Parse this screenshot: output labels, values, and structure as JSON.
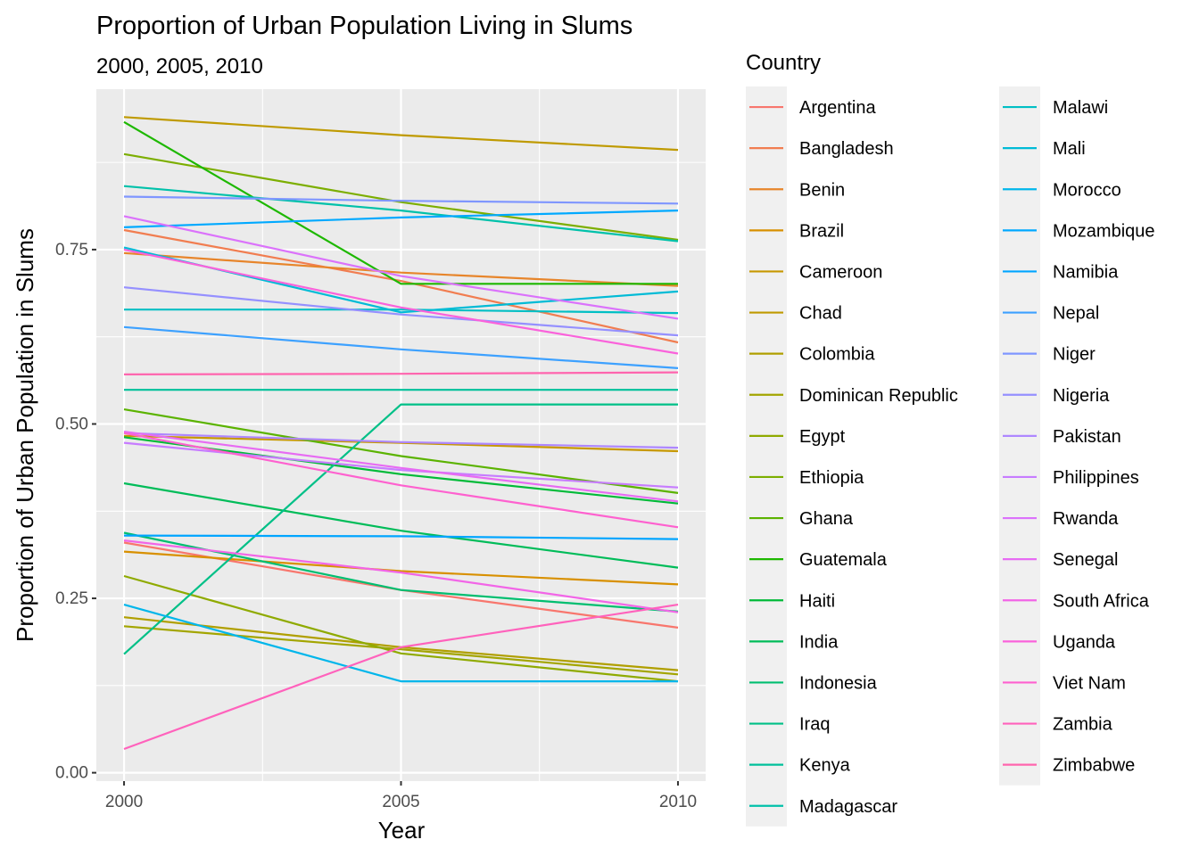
{
  "chart_data": {
    "type": "line",
    "title": "Proportion of Urban Population Living in Slums",
    "subtitle": "2000, 2005, 2010",
    "xlabel": "Year",
    "ylabel": "Proportion of Urban Population in Slums",
    "x": [
      2000,
      2005,
      2010
    ],
    "x_ticks": [
      "2000",
      "2005",
      "2010"
    ],
    "y_ticks": [
      "0.00",
      "0.25",
      "0.50",
      "0.75"
    ],
    "y_tick_values": [
      0,
      0.25,
      0.5,
      0.75
    ],
    "xlim": [
      1999.5,
      2010.5
    ],
    "ylim": [
      -0.012,
      0.98
    ],
    "grid": true,
    "legend_title": "Country",
    "legend_position": "right",
    "series": [
      {
        "name": "Argentina",
        "color": "#F8766D",
        "values": [
          0.33,
          0.262,
          0.208
        ]
      },
      {
        "name": "Bangladesh",
        "color": "#F17D50",
        "values": [
          0.778,
          0.705,
          0.617
        ]
      },
      {
        "name": "Benin",
        "color": "#E7852B",
        "values": [
          0.745,
          0.717,
          0.698
        ]
      },
      {
        "name": "Brazil",
        "color": "#D89000",
        "values": [
          0.317,
          0.289,
          0.27
        ]
      },
      {
        "name": "Cameroon",
        "color": "#C79800",
        "values": [
          0.483,
          0.473,
          0.461
        ]
      },
      {
        "name": "Chad",
        "color": "#BF9A00",
        "values": [
          0.94,
          0.914,
          0.893
        ]
      },
      {
        "name": "Colombia",
        "color": "#B09F00",
        "values": [
          0.223,
          0.18,
          0.147
        ]
      },
      {
        "name": "Dominican Republic",
        "color": "#A3A500",
        "values": [
          0.21,
          0.177,
          0.141
        ]
      },
      {
        "name": "Egypt",
        "color": "#8FAA00",
        "values": [
          0.282,
          0.171,
          0.131
        ]
      },
      {
        "name": "Ethiopia",
        "color": "#7CAE00",
        "values": [
          0.887,
          0.818,
          0.764
        ]
      },
      {
        "name": "Ghana",
        "color": "#5BB300",
        "values": [
          0.521,
          0.454,
          0.401
        ]
      },
      {
        "name": "Guatemala",
        "color": "#1DB800",
        "values": [
          0.933,
          0.701,
          0.701
        ]
      },
      {
        "name": "Haiti",
        "color": "#00BA38",
        "values": [
          0.481,
          0.428,
          0.386
        ]
      },
      {
        "name": "India",
        "color": "#00BC59",
        "values": [
          0.415,
          0.347,
          0.294
        ]
      },
      {
        "name": "Indonesia",
        "color": "#00BE70",
        "values": [
          0.344,
          0.262,
          0.231
        ]
      },
      {
        "name": "Iraq",
        "color": "#00C087",
        "values": [
          0.17,
          0.528,
          0.528
        ]
      },
      {
        "name": "Kenya",
        "color": "#00C09A",
        "values": [
          0.549,
          0.549,
          0.549
        ]
      },
      {
        "name": "Madagascar",
        "color": "#00C1AA",
        "values": [
          0.841,
          0.806,
          0.762
        ]
      },
      {
        "name": "Malawi",
        "color": "#00BFC4",
        "values": [
          0.664,
          0.664,
          0.659
        ]
      },
      {
        "name": "Mali",
        "color": "#00BBD6",
        "values": [
          0.753,
          0.66,
          0.69
        ]
      },
      {
        "name": "Morocco",
        "color": "#00B6EB",
        "values": [
          0.241,
          0.131,
          0.131
        ]
      },
      {
        "name": "Mozambique",
        "color": "#00A9FF",
        "values": [
          0.782,
          0.796,
          0.806
        ]
      },
      {
        "name": "Namibia",
        "color": "#00A5FF",
        "values": [
          0.34,
          0.339,
          0.335
        ]
      },
      {
        "name": "Nepal",
        "color": "#3DA1FF",
        "values": [
          0.639,
          0.607,
          0.58
        ]
      },
      {
        "name": "Niger",
        "color": "#7F96FF",
        "values": [
          0.826,
          0.82,
          0.816
        ]
      },
      {
        "name": "Nigeria",
        "color": "#9590FF",
        "values": [
          0.696,
          0.657,
          0.627
        ]
      },
      {
        "name": "Pakistan",
        "color": "#AE87FF",
        "values": [
          0.487,
          0.474,
          0.466
        ]
      },
      {
        "name": "Philippines",
        "color": "#C77CFF",
        "values": [
          0.473,
          0.434,
          0.409
        ]
      },
      {
        "name": "Rwanda",
        "color": "#DB72FB",
        "values": [
          0.798,
          0.712,
          0.651
        ]
      },
      {
        "name": "Senegal",
        "color": "#E76BF3",
        "values": [
          0.489,
          0.437,
          0.389
        ]
      },
      {
        "name": "South Africa",
        "color": "#F265E7",
        "values": [
          0.333,
          0.287,
          0.23
        ]
      },
      {
        "name": "Uganda",
        "color": "#FA62DB",
        "values": [
          0.75,
          0.667,
          0.601
        ]
      },
      {
        "name": "Viet Nam",
        "color": "#FE61CF",
        "values": [
          0.487,
          0.412,
          0.352
        ]
      },
      {
        "name": "Zambia",
        "color": "#FF62BC",
        "values": [
          0.034,
          0.18,
          0.241
        ]
      },
      {
        "name": "Zimbabwe",
        "color": "#FF65AE",
        "values": [
          0.571,
          0.572,
          0.574
        ]
      }
    ]
  }
}
